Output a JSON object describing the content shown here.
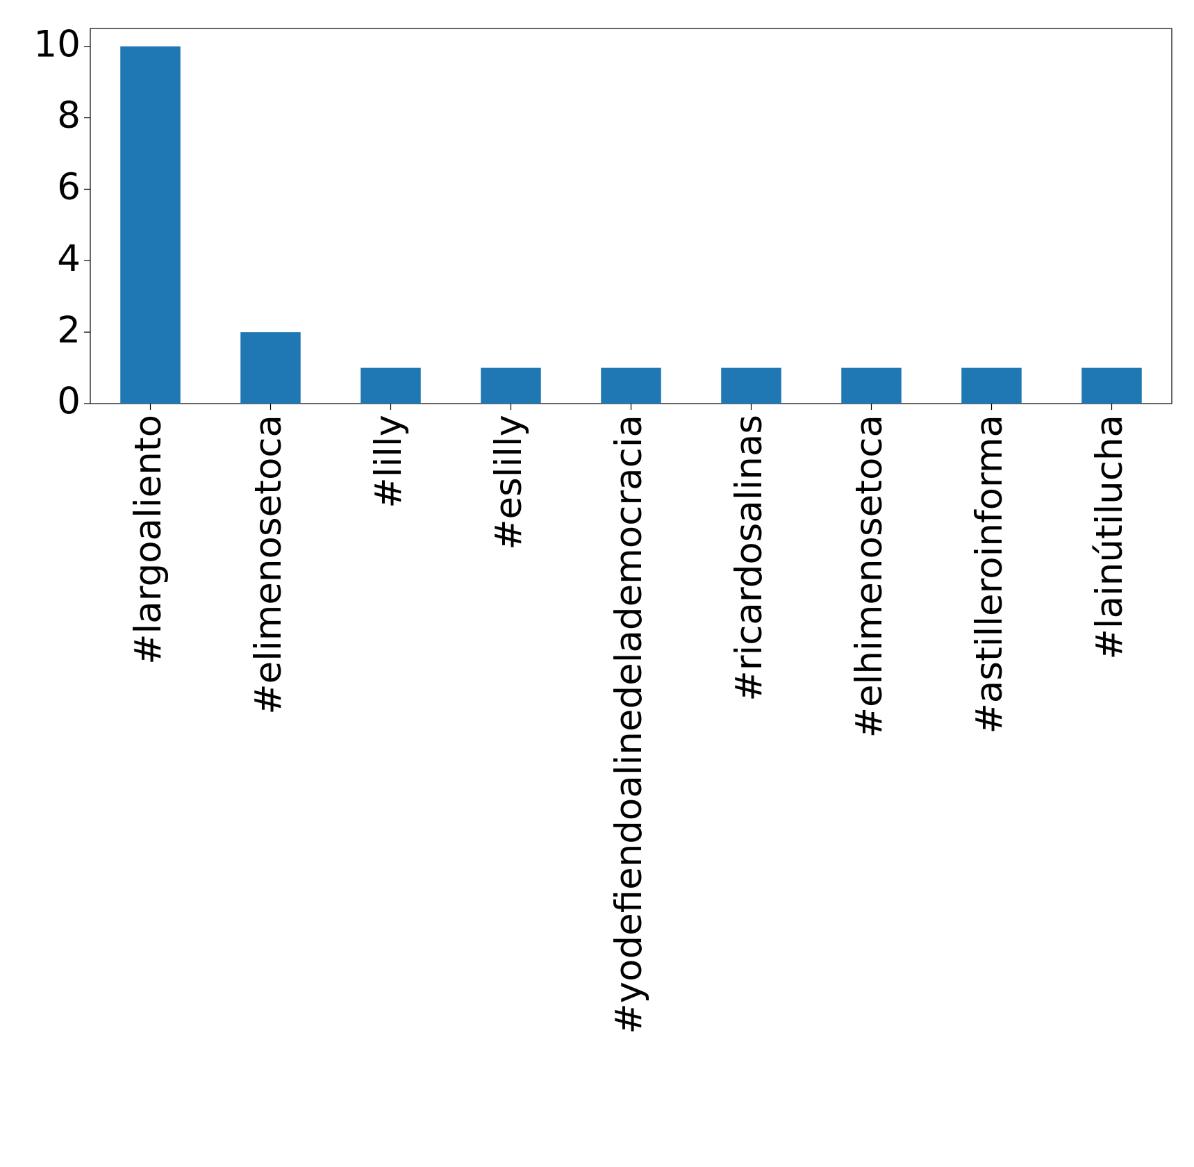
{
  "chart_data": {
    "type": "bar",
    "categories": [
      "#largoaliento",
      "#elimenosetoca",
      "#lilly",
      "#eslilly",
      "#yodefiendoalinedelademocracia",
      "#ricardosalinas",
      "#elhimenosetoca",
      "#astilleroinforma",
      "#lainútilucha"
    ],
    "values": [
      10,
      2,
      1,
      1,
      1,
      1,
      1,
      1,
      1
    ],
    "color": "#1f77b4",
    "ylim": [
      0,
      10.5
    ],
    "yticks": [
      0,
      2,
      4,
      6,
      8,
      10
    ],
    "grid": false
  }
}
